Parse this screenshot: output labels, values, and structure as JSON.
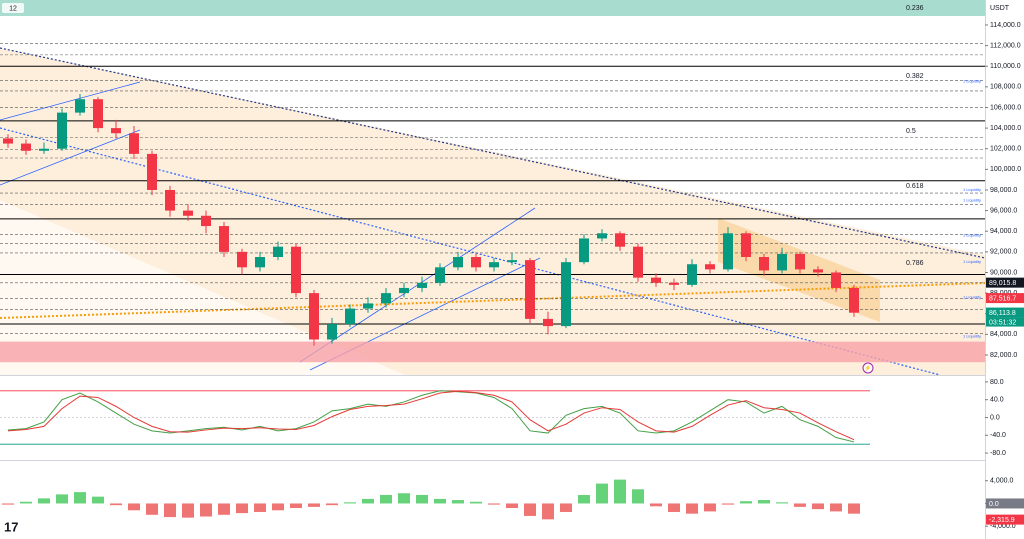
{
  "header": {
    "interval": "12",
    "currency": "USDT",
    "timer": "03:51:32"
  },
  "chart_data": [
    {
      "type": "candlestick",
      "ylim": [
        80060,
        116420
      ],
      "yticks": [
        {
          "value": 82000,
          "label": "82,000.0"
        },
        {
          "value": 84000,
          "label": "84,000.0"
        },
        {
          "value": 86000,
          "label": "86,000.0"
        },
        {
          "value": 88000,
          "label": "88,000.0"
        },
        {
          "value": 90000,
          "label": "90,000.0"
        },
        {
          "value": 92000,
          "label": "92,000.0"
        },
        {
          "value": 94000,
          "label": "94,000.0"
        },
        {
          "value": 96000,
          "label": "96,000.0"
        },
        {
          "value": 98000,
          "label": "98,000.0"
        },
        {
          "value": 100000,
          "label": "100,000.0"
        },
        {
          "value": 102000,
          "label": "102,000.0"
        },
        {
          "value": 104000,
          "label": "104,000.0"
        },
        {
          "value": 106000,
          "label": "106,000.0"
        },
        {
          "value": 108000,
          "label": "108,000.0"
        },
        {
          "value": 110000,
          "label": "110,000.0"
        },
        {
          "value": 112000,
          "label": "112,000.0"
        },
        {
          "value": 114000,
          "label": "114,000.0"
        }
      ],
      "up_color": "#089981",
      "down_color": "#f23645",
      "open": [
        103000,
        102500,
        101800,
        102000,
        105500,
        106800,
        104000,
        103500,
        101500,
        98000,
        96000,
        95500,
        94500,
        92000,
        90500,
        91500,
        92500,
        88000,
        83500,
        85000,
        86500,
        87000,
        88000,
        88500,
        89000,
        90500,
        91500,
        90500,
        91000,
        91200,
        85500,
        84800,
        91000,
        93300,
        93800,
        92500,
        89500,
        89000,
        88800,
        90800,
        90300,
        93800,
        91500,
        90200,
        91800,
        90300,
        90000,
        88500
      ],
      "high": [
        103400,
        102900,
        102600,
        105900,
        107300,
        107000,
        104800,
        104200,
        101800,
        98400,
        96600,
        96000,
        94900,
        92300,
        92000,
        93000,
        92800,
        88300,
        85600,
        86900,
        87600,
        88500,
        89000,
        89600,
        90900,
        92000,
        91800,
        91400,
        91900,
        91400,
        86200,
        91400,
        93700,
        94200,
        94000,
        92800,
        89900,
        89400,
        91300,
        91100,
        94400,
        94000,
        91800,
        92400,
        92000,
        90600,
        90200,
        88800
      ],
      "low": [
        102100,
        101400,
        101500,
        101800,
        105200,
        103600,
        103000,
        101000,
        97500,
        95400,
        95000,
        93800,
        91500,
        89800,
        90100,
        91200,
        87600,
        82900,
        83100,
        84700,
        86100,
        86600,
        87600,
        88100,
        88700,
        90200,
        90100,
        90100,
        90700,
        85100,
        84000,
        84600,
        90800,
        93000,
        92100,
        89100,
        88600,
        88300,
        88600,
        89900,
        90100,
        91100,
        89700,
        89900,
        89900,
        89600,
        88100,
        85700
      ],
      "close": [
        102500,
        101800,
        102000,
        105500,
        106800,
        104000,
        103500,
        101500,
        98000,
        96000,
        95500,
        94500,
        92000,
        90500,
        91500,
        92500,
        88000,
        83500,
        85000,
        86500,
        87000,
        88000,
        88500,
        89000,
        90500,
        91500,
        90500,
        91000,
        91200,
        85500,
        84800,
        91000,
        93300,
        93800,
        92500,
        89500,
        89000,
        88800,
        90800,
        90300,
        93800,
        91500,
        90200,
        91800,
        90300,
        90000,
        88500,
        86100
      ],
      "levels": [
        110000,
        104700,
        98900,
        95200,
        89800,
        85000
      ],
      "dashed_levels": [
        112200,
        111100,
        108600,
        107600,
        106000,
        103100,
        101900,
        101100,
        97700,
        96600,
        93700,
        92800,
        91900,
        89000,
        87500,
        86400,
        84100
      ],
      "zone": [
        81300,
        83300
      ],
      "fib_labels": [
        {
          "value": 115650,
          "label": "0.236"
        },
        {
          "value": 109050,
          "label": "0.382"
        },
        {
          "value": 103720,
          "label": "0.5"
        },
        {
          "value": 98390,
          "label": "0.618"
        },
        {
          "value": 90920,
          "label": "0.786"
        }
      ],
      "liquidity": [
        {
          "value": 108500,
          "label": "1 Liquidity"
        },
        {
          "value": 98000,
          "label": "1 Liquidity"
        },
        {
          "value": 97000,
          "label": "1 Liquidity"
        },
        {
          "value": 93600,
          "label": "1 Liquidity"
        },
        {
          "value": 91000,
          "label": "1 Liquidity"
        },
        {
          "value": 87600,
          "label": "1 Liquidity"
        },
        {
          "value": 83800,
          "label": "1 Liquidity"
        }
      ],
      "price_badges": [
        {
          "value": 89015.8,
          "label": "89,015.8",
          "color": "#131722"
        },
        {
          "value": 87516.7,
          "label": "87,516.7",
          "color": "#f23645"
        },
        {
          "value": 86113.8,
          "label": "86,113.8",
          "color": "#089981"
        }
      ]
    },
    {
      "type": "line",
      "ylim": [
        -95.6,
        93.3
      ],
      "yticks": [
        {
          "value": 80,
          "label": "80.0"
        },
        {
          "value": 40,
          "label": "40.0"
        },
        {
          "value": 0,
          "label": "0.0"
        },
        {
          "value": -40,
          "label": "-40.0"
        },
        {
          "value": -80,
          "label": "-80.0"
        }
      ],
      "bands": [
        {
          "value": 60,
          "color": "#f23645"
        },
        {
          "value": -60,
          "color": "#089981"
        }
      ],
      "series": [
        {
          "color": "#43a047",
          "values": [
            -28,
            -25,
            -10,
            40,
            55,
            35,
            10,
            -15,
            -30,
            -35,
            -30,
            -25,
            -22,
            -28,
            -20,
            -30,
            -25,
            -10,
            15,
            20,
            30,
            25,
            35,
            50,
            60,
            58,
            55,
            45,
            20,
            -30,
            -35,
            5,
            20,
            25,
            10,
            -30,
            -35,
            -30,
            -10,
            15,
            40,
            35,
            10,
            25,
            -5,
            -20,
            -45,
            -55
          ]
        },
        {
          "color": "#e53935",
          "values": [
            -30,
            -27,
            -20,
            20,
            48,
            45,
            25,
            0,
            -20,
            -32,
            -33,
            -28,
            -24,
            -25,
            -23,
            -26,
            -27,
            -18,
            2,
            18,
            25,
            27,
            30,
            42,
            55,
            59,
            56,
            50,
            35,
            -5,
            -30,
            -15,
            10,
            22,
            18,
            -10,
            -30,
            -33,
            -20,
            5,
            28,
            38,
            22,
            18,
            10,
            -12,
            -32,
            -50
          ]
        }
      ]
    },
    {
      "type": "bar",
      "ylim": [
        -6260,
        7480
      ],
      "yticks": [
        {
          "value": 4000,
          "label": "4,000.0"
        },
        {
          "value": 0,
          "label": "0.0"
        },
        {
          "value": -4000,
          "label": "-4,000.0"
        }
      ],
      "pos_color": "#66d27a",
      "neg_color": "#ef7575",
      "values": [
        -200,
        300,
        900,
        1600,
        2000,
        1200,
        -300,
        -1200,
        -2000,
        -2400,
        -2500,
        -2300,
        -2000,
        -1700,
        -1500,
        -1200,
        -800,
        -600,
        -300,
        200,
        800,
        1500,
        1800,
        1500,
        800,
        600,
        300,
        -200,
        -800,
        -2200,
        -2800,
        -1500,
        1500,
        3500,
        4200,
        2500,
        -500,
        -1500,
        -1800,
        -1400,
        -200,
        400,
        600,
        200,
        -600,
        -1000,
        -1400,
        -1800
      ],
      "badges": [
        {
          "value": 0,
          "label": "0.0",
          "color": "#787b86"
        },
        {
          "value": -2315.9,
          "label": "-2,315.9",
          "color": "#f23645"
        }
      ]
    }
  ]
}
